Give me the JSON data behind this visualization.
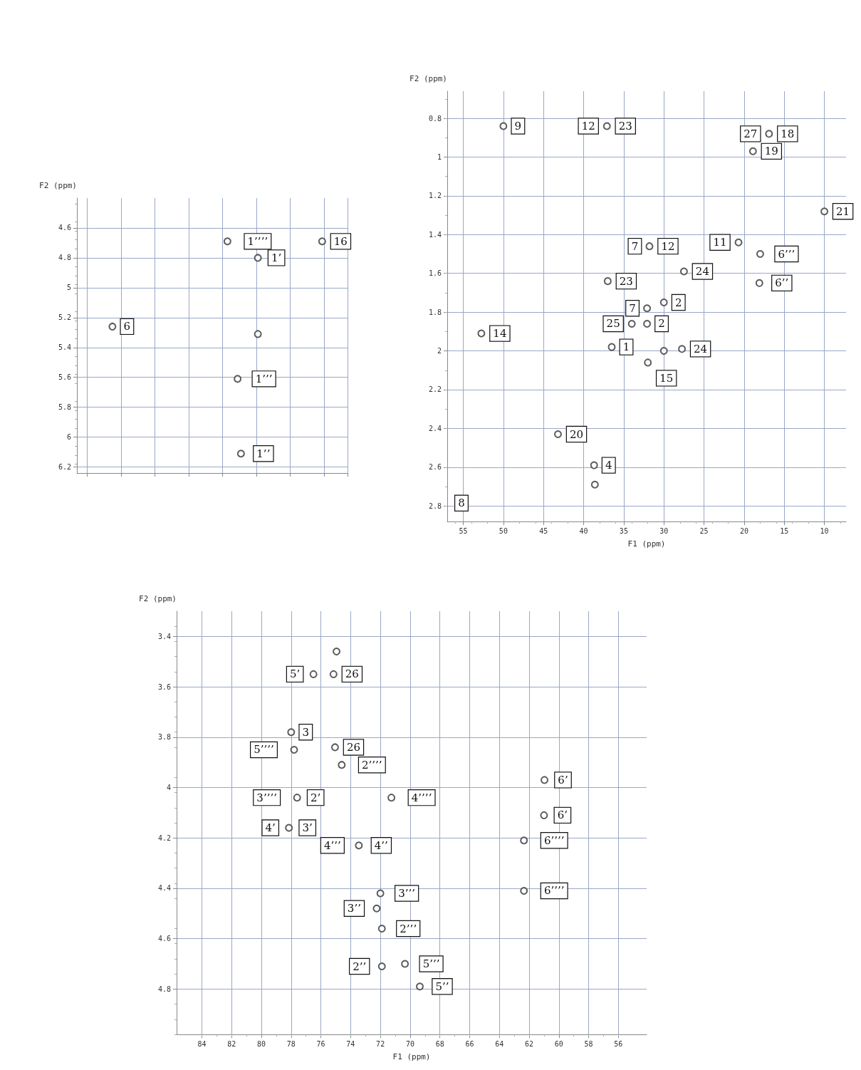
{
  "chart_data": [
    {
      "type": "scatter",
      "ylabel": "F2 (ppm)",
      "grid": true,
      "marker": "circle",
      "tick_labels": "y",
      "categories": [
        null,
        null,
        null,
        null,
        null,
        null,
        null,
        null,
        null,
        null,
        null,
        null,
        null,
        null,
        null,
        null,
        null,
        null,
        null,
        null,
        null,
        null,
        null,
        null,
        null,
        null,
        null,
        null,
        null,
        null,
        null,
        null,
        null,
        null,
        null,
        null,
        null,
        null,
        null,
        null,
        null,
        null,
        null,
        null,
        null,
        null,
        null,
        null,
        null,
        null,
        null,
        null,
        null,
        null,
        null,
        null,
        null,
        null,
        null,
        null,
        null,
        null,
        null,
        null,
        null,
        null,
        null,
        null,
        null,
        null,
        null,
        null,
        null,
        null,
        null,
        null,
        null,
        null,
        null,
        null
      ],
      "ylim": [
        6.24,
        4.4
      ],
      "yticks": [
        4.6,
        4.8,
        5.0,
        5.2,
        5.4,
        5.6,
        5.8,
        6.0,
        6.2
      ],
      "series": [
        {
          "color": "#333333",
          "values": [
            null,
            null,
            null,
            null,
            null,
            null,
            null,
            null,
            null,
            null,
            5.26,
            null,
            null,
            null,
            null,
            null,
            null,
            null,
            null,
            null,
            null,
            null,
            null,
            null,
            null,
            null,
            null,
            null,
            null,
            null,
            null,
            null,
            null,
            null,
            null,
            null,
            null,
            null,
            null,
            null,
            null,
            null,
            null,
            null,
            4.69,
            null,
            null,
            5.61,
            6.11,
            null,
            null,
            null,
            null,
            4.8,
            null,
            null,
            null,
            null,
            null,
            null,
            null,
            null,
            null,
            null,
            null,
            null,
            null,
            null,
            null,
            null,
            null,
            null,
            4.69,
            null,
            null,
            null,
            null,
            null,
            null,
            null
          ]
        },
        {
          "color": "#333333",
          "values": [
            null,
            null,
            null,
            null,
            null,
            null,
            null,
            null,
            null,
            null,
            null,
            null,
            null,
            null,
            null,
            null,
            null,
            null,
            null,
            null,
            null,
            null,
            null,
            null,
            null,
            null,
            null,
            null,
            null,
            null,
            null,
            null,
            null,
            null,
            null,
            null,
            null,
            null,
            null,
            null,
            null,
            null,
            null,
            null,
            null,
            null,
            null,
            null,
            null,
            null,
            null,
            null,
            null,
            5.31,
            null,
            null,
            null,
            null,
            null,
            null,
            null,
            null,
            null,
            null,
            null,
            null,
            null,
            null,
            null,
            null,
            null,
            null,
            null,
            null,
            null,
            null,
            null,
            null,
            null,
            null
          ]
        }
      ],
      "annotations": [
        {
          "text": "6",
          "y": 5.26
        },
        {
          "text": "1’’’’",
          "y": 4.69
        },
        {
          "text": "1’",
          "y": 4.8
        },
        {
          "text": "16",
          "y": 4.69
        },
        {
          "text": "1’’’",
          "y": 5.61
        },
        {
          "text": "1’’",
          "y": 6.11
        }
      ]
    },
    {
      "type": "scatter",
      "xlabel": "F1 (ppm)",
      "ylabel": "F2 (ppm)",
      "grid": true,
      "marker": "circle",
      "xlim": [
        57.0,
        7.3
      ],
      "xticks": [
        55,
        50,
        45,
        40,
        35,
        30,
        25,
        20,
        15,
        10
      ],
      "ylim": [
        2.88,
        0.66
      ],
      "yticks": [
        0.8,
        1.0,
        1.2,
        1.4,
        1.6,
        1.8,
        2.0,
        2.2,
        2.4,
        2.6,
        2.8
      ],
      "series": [
        {
          "color": "#333333",
          "x": [
            50.0,
            37.1,
            16.9,
            18.9,
            10.0,
            31.8,
            20.7,
            18.0,
            18.1,
            27.5,
            37.0,
            32.1,
            30.0,
            34.0,
            32.1,
            52.75,
            36.5,
            30.0,
            27.75,
            32.0,
            43.2,
            38.7,
            38.6
          ],
          "values": [
            0.84,
            0.84,
            0.88,
            0.97,
            1.28,
            1.46,
            1.44,
            1.5,
            1.65,
            1.59,
            1.64,
            1.78,
            1.75,
            1.86,
            1.86,
            1.91,
            1.98,
            2.0,
            1.99,
            2.06,
            2.43,
            2.59,
            2.69
          ]
        }
      ],
      "annotations": [
        {
          "text": "9",
          "x": 50.0,
          "y": 0.84
        },
        {
          "text": "23",
          "x": 37.1,
          "y": 0.84
        },
        {
          "text": "12",
          "x": 37.1,
          "y": 0.84
        },
        {
          "text": "18",
          "x": 16.9,
          "y": 0.88
        },
        {
          "text": "27",
          "x": 16.9,
          "y": 0.88
        },
        {
          "text": "19",
          "x": 18.9,
          "y": 0.97
        },
        {
          "text": "21",
          "x": 10.0,
          "y": 1.28
        },
        {
          "text": "12",
          "x": 31.8,
          "y": 1.46
        },
        {
          "text": "7",
          "x": 31.8,
          "y": 1.46
        },
        {
          "text": "11",
          "x": 20.7,
          "y": 1.44
        },
        {
          "text": "6’’’",
          "x": 18.0,
          "y": 1.5
        },
        {
          "text": "6’’",
          "x": 18.1,
          "y": 1.65
        },
        {
          "text": "24",
          "x": 27.5,
          "y": 1.59
        },
        {
          "text": "23",
          "x": 37.0,
          "y": 1.64
        },
        {
          "text": "7",
          "x": 32.1,
          "y": 1.78
        },
        {
          "text": "2",
          "x": 30.0,
          "y": 1.75
        },
        {
          "text": "25",
          "x": 34.0,
          "y": 1.86
        },
        {
          "text": "2",
          "x": 32.1,
          "y": 1.86
        },
        {
          "text": "14",
          "x": 52.75,
          "y": 1.91
        },
        {
          "text": "1",
          "x": 36.5,
          "y": 1.98
        },
        {
          "text": "24",
          "x": 27.75,
          "y": 1.99
        },
        {
          "text": "15",
          "x": 32.0,
          "y": 2.06
        },
        "8",
        {
          "text": "20",
          "x": 43.2,
          "y": 2.43
        },
        {
          "text": "4",
          "x": 38.7,
          "y": 2.59
        }
      ]
    },
    {
      "type": "scatter",
      "xlabel": "F1 (ppm)",
      "ylabel": "F2 (ppm)",
      "grid": true,
      "marker": "circle",
      "xlim": [
        85.7,
        54.1
      ],
      "xticks": [
        84,
        82,
        80,
        78,
        76,
        74,
        72,
        70,
        68,
        66,
        64,
        62,
        60,
        58,
        56
      ],
      "ylim": [
        4.98,
        3.3
      ],
      "yticks": [
        3.4,
        3.6,
        3.8,
        4.0,
        4.2,
        4.4,
        4.6,
        4.8
      ],
      "series": [
        {
          "color": "#333333",
          "x": [
            76.5,
            75.15,
            74.95,
            78.0,
            77.8,
            75.05,
            74.6,
            77.6,
            78.15,
            73.45,
            71.26,
            60.97,
            61.0,
            62.35,
            62.35,
            72.0,
            72.25,
            71.9,
            71.9,
            70.35,
            69.35
          ],
          "values": [
            3.55,
            3.55,
            3.46,
            3.78,
            3.85,
            3.84,
            3.91,
            4.04,
            4.16,
            4.23,
            4.04,
            3.97,
            4.11,
            4.21,
            4.41,
            4.42,
            4.48,
            4.56,
            4.71,
            4.7,
            4.79
          ]
        }
      ],
      "annotations": [
        {
          "text": "5’",
          "x": 76.5,
          "y": 3.55
        },
        {
          "text": "26",
          "x": 75.15,
          "y": 3.55
        },
        {
          "text": "3",
          "x": 78.0,
          "y": 3.78
        },
        {
          "text": "5’’’’",
          "x": 77.8,
          "y": 3.85
        },
        {
          "text": "26",
          "x": 75.05,
          "y": 3.84
        },
        {
          "text": "2’’’’",
          "x": 74.6,
          "y": 3.91
        },
        {
          "text": "2’",
          "x": 77.6,
          "y": 4.04
        },
        {
          "text": "3’’’’",
          "x": 77.6,
          "y": 4.04
        },
        {
          "text": "3’",
          "x": 78.15,
          "y": 4.16
        },
        {
          "text": "4’",
          "x": 78.15,
          "y": 4.16
        },
        {
          "text": "4’’",
          "x": 73.45,
          "y": 4.23
        },
        {
          "text": "4’’’",
          "x": 73.45,
          "y": 4.23
        },
        {
          "text": "4’’’’",
          "x": 71.26,
          "y": 4.04
        },
        {
          "text": "6’",
          "x": 60.97,
          "y": 3.97
        },
        {
          "text": "6’",
          "x": 61.0,
          "y": 4.11
        },
        {
          "text": "6’’’’",
          "x": 62.35,
          "y": 4.21
        },
        {
          "text": "6’’’’",
          "x": 62.35,
          "y": 4.41
        },
        {
          "text": "3’’’",
          "x": 72.0,
          "y": 4.42
        },
        {
          "text": "3’’",
          "x": 72.25,
          "y": 4.48
        },
        {
          "text": "2’’’",
          "x": 71.9,
          "y": 4.56
        },
        {
          "text": "2’’",
          "x": 71.9,
          "y": 4.71
        },
        {
          "text": "5’’’",
          "x": 70.35,
          "y": 4.7
        },
        {
          "text": "5’’",
          "x": 69.35,
          "y": 4.79
        }
      ]
    }
  ]
}
